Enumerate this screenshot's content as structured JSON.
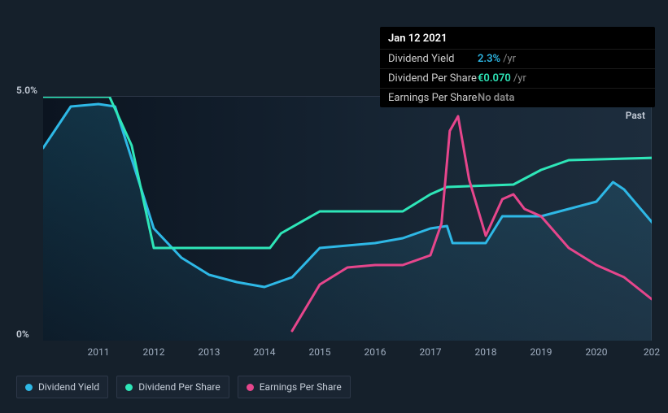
{
  "tooltip": {
    "date": "Jan 12 2021",
    "rows": [
      {
        "label": "Dividend Yield",
        "value": "2.3%",
        "suffix": "/yr",
        "value_color": "#2eb8e6"
      },
      {
        "label": "Dividend Per Share",
        "value": "€0.070",
        "suffix": "/yr",
        "value_color": "#2ee6b8"
      },
      {
        "label": "Earnings Per Share",
        "value": "No data",
        "suffix": "",
        "value_color": "#888"
      }
    ]
  },
  "chart": {
    "type": "line",
    "background_color": "#15202b",
    "plot_gradient_from": "#0f1820",
    "plot_gradient_to": "#1c2a38",
    "grid_color": "#2d3748",
    "ylim": [
      0,
      5
    ],
    "y_top_label": "5.0%",
    "y_bottom_label": "0%",
    "xlim": [
      2010,
      2021
    ],
    "x_ticks": [
      2011,
      2012,
      2013,
      2014,
      2015,
      2016,
      2017,
      2018,
      2019,
      2020
    ],
    "x_extra_tick": "202",
    "past_label": "Past",
    "tooltip_x": 2021,
    "series": [
      {
        "name": "Dividend Yield",
        "color": "#2eb8e6",
        "fill": true,
        "fill_opacity": 0.12,
        "line_width": 3,
        "data": [
          [
            2010.0,
            3.95
          ],
          [
            2010.5,
            4.8
          ],
          [
            2011.0,
            4.85
          ],
          [
            2011.3,
            4.8
          ],
          [
            2012.0,
            2.3
          ],
          [
            2012.5,
            1.7
          ],
          [
            2013.0,
            1.35
          ],
          [
            2013.5,
            1.2
          ],
          [
            2014.0,
            1.1
          ],
          [
            2014.5,
            1.3
          ],
          [
            2015.0,
            1.9
          ],
          [
            2015.5,
            1.95
          ],
          [
            2016.0,
            2.0
          ],
          [
            2016.5,
            2.1
          ],
          [
            2017.0,
            2.3
          ],
          [
            2017.3,
            2.35
          ],
          [
            2017.4,
            2.0
          ],
          [
            2018.0,
            2.0
          ],
          [
            2018.3,
            2.55
          ],
          [
            2019.0,
            2.55
          ],
          [
            2019.5,
            2.7
          ],
          [
            2020.0,
            2.85
          ],
          [
            2020.3,
            3.25
          ],
          [
            2020.5,
            3.1
          ],
          [
            2021.1,
            2.3
          ]
        ],
        "end_marker": true
      },
      {
        "name": "Dividend Per Share",
        "color": "#2ee6b8",
        "fill": false,
        "line_width": 3,
        "data": [
          [
            2010.0,
            5.0
          ],
          [
            2011.2,
            5.0
          ],
          [
            2011.6,
            4.0
          ],
          [
            2012.0,
            1.9
          ],
          [
            2014.1,
            1.9
          ],
          [
            2014.3,
            2.2
          ],
          [
            2015.0,
            2.65
          ],
          [
            2016.5,
            2.65
          ],
          [
            2017.0,
            3.0
          ],
          [
            2017.3,
            3.15
          ],
          [
            2018.5,
            3.2
          ],
          [
            2019.0,
            3.5
          ],
          [
            2019.5,
            3.7
          ],
          [
            2021.1,
            3.75
          ]
        ],
        "end_marker": true
      },
      {
        "name": "Earnings Per Share",
        "color": "#e6468c",
        "fill": false,
        "line_width": 3,
        "data": [
          [
            2014.5,
            0.2
          ],
          [
            2015.0,
            1.15
          ],
          [
            2015.5,
            1.5
          ],
          [
            2016.0,
            1.55
          ],
          [
            2016.5,
            1.55
          ],
          [
            2017.0,
            1.75
          ],
          [
            2017.2,
            2.4
          ],
          [
            2017.35,
            4.3
          ],
          [
            2017.5,
            4.6
          ],
          [
            2017.7,
            3.3
          ],
          [
            2018.0,
            2.15
          ],
          [
            2018.3,
            2.9
          ],
          [
            2018.5,
            3.0
          ],
          [
            2018.7,
            2.7
          ],
          [
            2019.0,
            2.55
          ],
          [
            2019.5,
            1.9
          ],
          [
            2020.0,
            1.55
          ],
          [
            2020.5,
            1.3
          ],
          [
            2021.0,
            0.85
          ]
        ],
        "end_marker": false
      }
    ]
  },
  "legend": {
    "items": [
      {
        "label": "Dividend Yield",
        "color": "#2eb8e6"
      },
      {
        "label": "Dividend Per Share",
        "color": "#2ee6b8"
      },
      {
        "label": "Earnings Per Share",
        "color": "#e6468c"
      }
    ]
  }
}
